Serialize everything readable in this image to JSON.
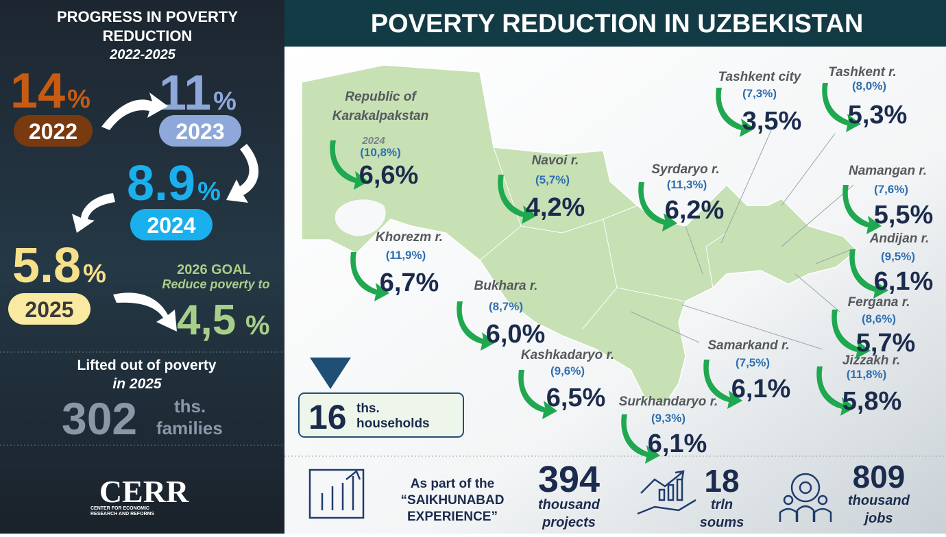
{
  "header": {
    "title": "POVERTY REDUCTION IN UZBEKISTAN"
  },
  "left_panel": {
    "title_lines": [
      "PROGRESS IN POVERTY",
      "REDUCTION"
    ],
    "period": "2022-2025",
    "years": [
      {
        "rate": "14",
        "unit": "%",
        "year": "2022"
      },
      {
        "rate": "11",
        "unit": "%",
        "year": "2023"
      },
      {
        "rate": "8.9",
        "unit": "%",
        "year": "2024"
      },
      {
        "rate": "5.8",
        "unit": "%",
        "year": "2025"
      }
    ],
    "goal": {
      "title": "2026 GOAL",
      "subtitle": "Reduce poverty to",
      "rate": "4,5",
      "unit": "%"
    },
    "lifted": {
      "title": "Lifted out of poverty",
      "period": "in 2025",
      "value": "302",
      "unit_line1": "ths.",
      "unit_line2": "families"
    },
    "logo": {
      "name": "CERR",
      "line1": "CENTER FOR ECONOMIC",
      "line2": "RESEARCH AND REFORMS"
    }
  },
  "map": {
    "households": {
      "value": "16",
      "line1": "ths.",
      "line2": "households"
    },
    "regions": [
      {
        "name_lines": [
          "Republic of",
          "Karakalpakstan"
        ],
        "note": "2024",
        "previous": "(10,8%)",
        "current": "6,6%"
      },
      {
        "name_lines": [
          "Navoi r."
        ],
        "previous": "(5,7%)",
        "current": "4,2%"
      },
      {
        "name_lines": [
          "Khorezm r."
        ],
        "previous": "(11,9%)",
        "current": "6,7%"
      },
      {
        "name_lines": [
          "Bukhara r."
        ],
        "previous": "(8,7%)",
        "current": "6,0%"
      },
      {
        "name_lines": [
          "Kashkadaryo r."
        ],
        "previous": "(9,6%)",
        "current": "6,5%"
      },
      {
        "name_lines": [
          "Surkhandaryo r."
        ],
        "previous": "(9,3%)",
        "current": "6,1%"
      },
      {
        "name_lines": [
          "Samarkand r."
        ],
        "previous": "(7,5%)",
        "current": "6,1%"
      },
      {
        "name_lines": [
          "Jizzakh r."
        ],
        "previous": "(11,8%)",
        "current": "5,8%"
      },
      {
        "name_lines": [
          "Fergana r."
        ],
        "previous": "(8,6%)",
        "current": "5,7%"
      },
      {
        "name_lines": [
          "Andijan r."
        ],
        "previous": "(9,5%)",
        "current": "6,1%"
      },
      {
        "name_lines": [
          "Namangan r."
        ],
        "previous": "(7,6%)",
        "current": "5,5%"
      },
      {
        "name_lines": [
          "Syrdaryo r."
        ],
        "previous": "(11,3%)",
        "current": "6,2%"
      },
      {
        "name_lines": [
          "Tashkent city"
        ],
        "previous": "(7,3%)",
        "current": "3,5%"
      },
      {
        "name_lines": [
          "Tashkent r."
        ],
        "previous": "(8,0%)",
        "current": "5,3%"
      }
    ]
  },
  "footer": {
    "intro_lines": [
      "As part of the",
      "“SAIKHUNABAD",
      "EXPERIENCE”"
    ],
    "stats": [
      {
        "value": "394",
        "line1": "thousand",
        "line2": "projects"
      },
      {
        "value": "18",
        "line1": "trln",
        "line2": "soums"
      },
      {
        "value": "809",
        "line1": "thousand",
        "line2": "jobs"
      }
    ]
  }
}
